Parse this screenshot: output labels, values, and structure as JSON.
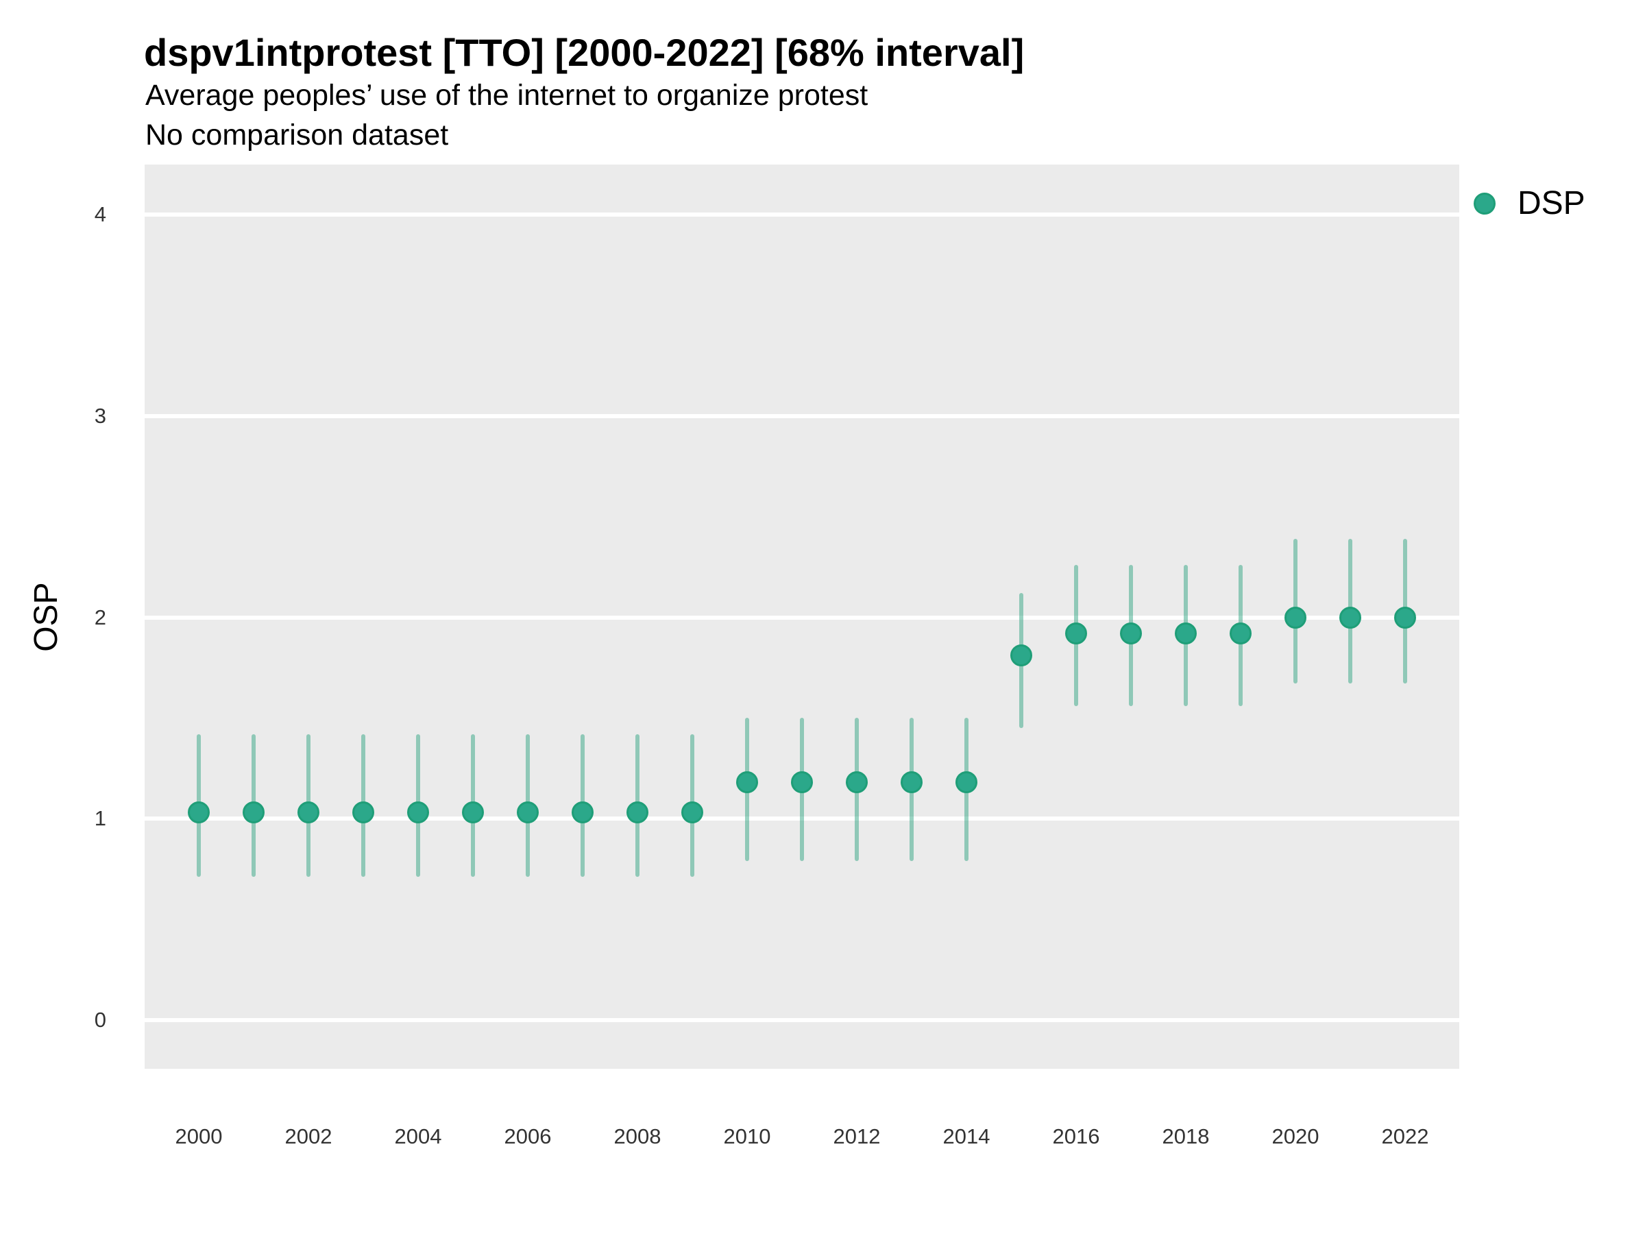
{
  "title": "dspv1intprotest [TTO] [2000-2022] [68% interval]",
  "subtitle": "Average peoples’ use of the internet to organize protest",
  "subtitle2": "No comparison dataset",
  "y_axis_title": "OSP",
  "legend": {
    "label": "DSP"
  },
  "colors": {
    "panel_background": "#EBEBEB",
    "gridline": "#FFFFFF",
    "point_fill": "#2BA88A",
    "point_stroke": "#1F9E78",
    "interval_line": "rgba(31,158,120,0.45)",
    "tick_label": "#333333",
    "text": "#000000"
  },
  "chart_data": {
    "type": "scatter",
    "subtype": "pointrange",
    "title": "dspv1intprotest [TTO] [2000-2022] [68% interval]",
    "subtitle": "Average peoples’ use of the internet to organize protest",
    "note": "No comparison dataset",
    "xlabel": "",
    "ylabel": "OSP",
    "interval": "68%",
    "legend_position": "right",
    "grid": "major-horizontal",
    "ylim": [
      -0.24,
      4.25
    ],
    "y_ticks": [
      0,
      1,
      2,
      3,
      4
    ],
    "x_ticks": [
      2000,
      2002,
      2004,
      2006,
      2008,
      2010,
      2012,
      2014,
      2016,
      2018,
      2020,
      2022
    ],
    "x": [
      2000,
      2001,
      2002,
      2003,
      2004,
      2005,
      2006,
      2007,
      2008,
      2009,
      2010,
      2011,
      2012,
      2013,
      2014,
      2015,
      2016,
      2017,
      2018,
      2019,
      2020,
      2021,
      2022
    ],
    "series": [
      {
        "name": "DSP",
        "values": [
          1.03,
          1.03,
          1.03,
          1.03,
          1.03,
          1.03,
          1.03,
          1.03,
          1.03,
          1.03,
          1.18,
          1.18,
          1.18,
          1.18,
          1.18,
          1.81,
          1.92,
          1.92,
          1.92,
          1.92,
          2.0,
          2.0,
          2.0
        ],
        "interval_low": [
          0.71,
          0.71,
          0.71,
          0.71,
          0.71,
          0.71,
          0.71,
          0.71,
          0.71,
          0.71,
          0.79,
          0.79,
          0.79,
          0.79,
          0.79,
          1.45,
          1.56,
          1.56,
          1.56,
          1.56,
          1.67,
          1.67,
          1.67
        ],
        "interval_high": [
          1.42,
          1.42,
          1.42,
          1.42,
          1.42,
          1.42,
          1.42,
          1.42,
          1.42,
          1.42,
          1.5,
          1.5,
          1.5,
          1.5,
          1.5,
          2.12,
          2.26,
          2.26,
          2.26,
          2.26,
          2.39,
          2.39,
          2.39
        ]
      }
    ]
  }
}
